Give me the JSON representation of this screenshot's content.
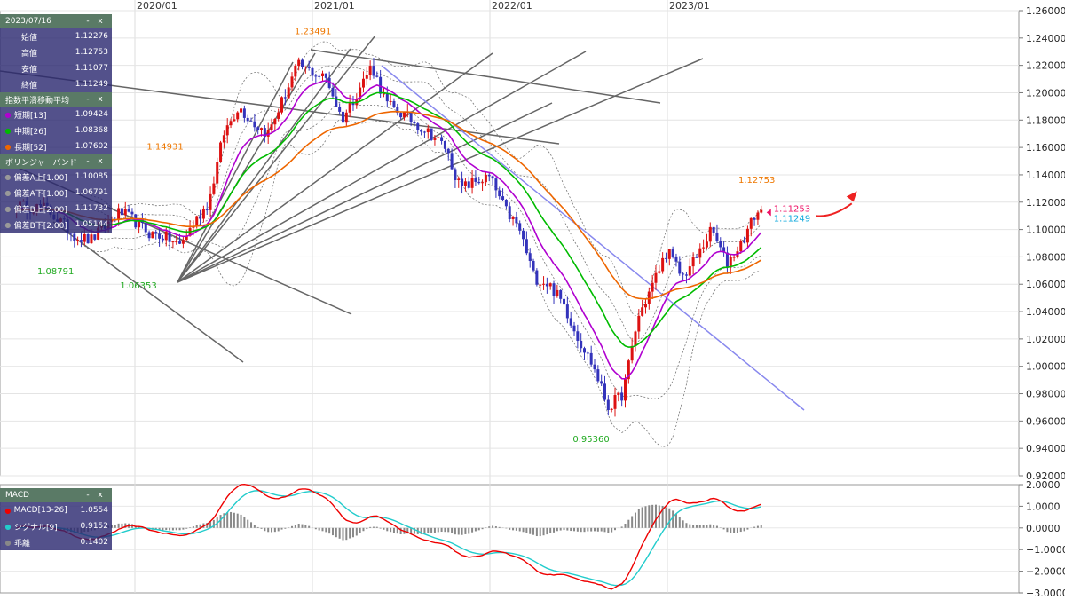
{
  "colors": {
    "candle_up": "#dd1111",
    "candle_down": "#3333bb",
    "ema_short": "#b000d0",
    "ema_mid": "#00bb00",
    "ema_long": "#ee6600",
    "macd": "#ee0000",
    "signal": "#22cccc",
    "hist": "#888888",
    "trendline": "#666666",
    "downtrend": "#8888ee",
    "label_orange": "#ee7700",
    "label_green": "#22aa22",
    "price_current": "#ee1166",
    "price_close": "#11aadd"
  },
  "info_panel": {
    "date": "2023/07/16",
    "rows": [
      {
        "label": "始値",
        "value": "1.12276"
      },
      {
        "label": "高値",
        "value": "1.12753"
      },
      {
        "label": "安値",
        "value": "1.11077"
      },
      {
        "label": "終値",
        "value": "1.11249"
      }
    ]
  },
  "ema_panel": {
    "title": "指数平滑移動平均",
    "rows": [
      {
        "label": "短期[13]",
        "value": "1.09424",
        "color": "#b000d0"
      },
      {
        "label": "中期[26]",
        "value": "1.08368",
        "color": "#00bb00"
      },
      {
        "label": "長期[52]",
        "value": "1.07602",
        "color": "#ee6600"
      }
    ]
  },
  "bb_panel": {
    "title": "ボリンジャーバンド",
    "rows": [
      {
        "label": "偏差A上[1.00]",
        "value": "1.10085"
      },
      {
        "label": "偏差A下[1.00]",
        "value": "1.06791"
      },
      {
        "label": "偏差B上[2.00]",
        "value": "1.11732"
      },
      {
        "label": "偏差B下[2.00]",
        "value": "1.05144"
      }
    ]
  },
  "macd_panel": {
    "title": "MACD",
    "rows": [
      {
        "label": "MACD[13-26]",
        "value": "1.0554",
        "color": "#ee0000"
      },
      {
        "label": "シグナル[9]",
        "value": "0.9152",
        "color": "#22cccc"
      },
      {
        "label": "乖離",
        "value": "0.1402",
        "color": "#888888"
      }
    ]
  },
  "panel_controls": {
    "minimize": "-",
    "close": "x"
  },
  "chart_data": {
    "type": "candlestick",
    "x_tick_labels": [
      "2020/01",
      "2021/01",
      "2022/01",
      "2023/01"
    ],
    "ylim": [
      0.92,
      1.26
    ],
    "y_tick_labels": [
      "1.26000",
      "1.24000",
      "1.22000",
      "1.20000",
      "1.18000",
      "1.16000",
      "1.14000",
      "1.12000",
      "1.10000",
      "1.08000",
      "1.06000",
      "1.04000",
      "1.02000",
      "1.00000",
      "0.98000",
      "0.96000",
      "0.94000",
      "0.92000"
    ],
    "anchor_closes": [
      [
        "2019/05",
        1.1175
      ],
      [
        "2019/07",
        1.1155
      ],
      [
        "2019/09",
        1.095
      ],
      [
        "2019/10",
        1.092
      ],
      [
        "2019/12",
        1.113
      ],
      [
        "2020/01",
        1.106
      ],
      [
        "2020/02",
        1.097
      ],
      [
        "2020/03",
        1.095
      ],
      [
        "2020/04",
        1.088
      ],
      [
        "2020/05",
        1.105
      ],
      [
        "2020/06",
        1.12
      ],
      [
        "2020/07",
        1.17
      ],
      [
        "2020/08",
        1.19
      ],
      [
        "2020/09",
        1.178
      ],
      [
        "2020/10",
        1.17
      ],
      [
        "2020/12",
        1.22
      ],
      [
        "2021/01",
        1.215
      ],
      [
        "2021/02",
        1.21
      ],
      [
        "2021/03",
        1.18
      ],
      [
        "2021/04",
        1.2
      ],
      [
        "2021/05",
        1.22
      ],
      [
        "2021/06",
        1.192
      ],
      [
        "2021/07",
        1.185
      ],
      [
        "2021/09",
        1.17
      ],
      [
        "2021/10",
        1.16
      ],
      [
        "2021/11",
        1.13
      ],
      [
        "2021/12",
        1.135
      ],
      [
        "2022/01",
        1.138
      ],
      [
        "2022/02",
        1.115
      ],
      [
        "2022/03",
        1.1
      ],
      [
        "2022/04",
        1.065
      ],
      [
        "2022/05",
        1.06
      ],
      [
        "2022/06",
        1.045
      ],
      [
        "2022/07",
        1.02
      ],
      [
        "2022/08",
        1.0
      ],
      [
        "2022/09",
        0.97
      ],
      [
        "2022/10",
        0.98
      ],
      [
        "2022/11",
        1.035
      ],
      [
        "2022/12",
        1.06
      ],
      [
        "2023/01",
        1.085
      ],
      [
        "2023/02",
        1.065
      ],
      [
        "2023/03",
        1.08
      ],
      [
        "2023/04",
        1.1
      ],
      [
        "2023/05",
        1.075
      ],
      [
        "2023/06",
        1.09
      ],
      [
        "2023/07",
        1.1125
      ]
    ],
    "annotations": [
      {
        "text": "1.23491",
        "date": "2021/01",
        "color": "#ee7700"
      },
      {
        "text": "1.14931",
        "date": "2020/03",
        "color": "#ee7700"
      },
      {
        "text": "1.08791",
        "date": "2019/10",
        "color": "#22aa22"
      },
      {
        "text": "1.06353",
        "date": "2020/03",
        "color": "#22aa22"
      },
      {
        "text": "0.95360",
        "date": "2022/09",
        "color": "#22aa22"
      },
      {
        "text": "1.12753",
        "date": "2023/07",
        "color": "#ee7700"
      }
    ],
    "current_price_labels": [
      {
        "text": "1.11253",
        "color": "#ee1166"
      },
      {
        "text": "1.11249",
        "color": "#11aadd"
      }
    ],
    "macd_ylim": [
      -3,
      2
    ],
    "macd_y_tick_labels": [
      "2.0000",
      "1.0000",
      "0.0000",
      "−1.0000",
      "−2.0000",
      "−3.0000"
    ],
    "series": [
      {
        "name": "短期[13]",
        "type": "ema",
        "period": 13
      },
      {
        "name": "中期[26]",
        "type": "ema",
        "period": 26
      },
      {
        "name": "長期[52]",
        "type": "ema",
        "period": 52
      },
      {
        "name": "MACD[13-26]",
        "type": "macd"
      },
      {
        "name": "シグナル[9]",
        "type": "signal"
      },
      {
        "name": "乖離",
        "type": "histogram"
      }
    ]
  }
}
